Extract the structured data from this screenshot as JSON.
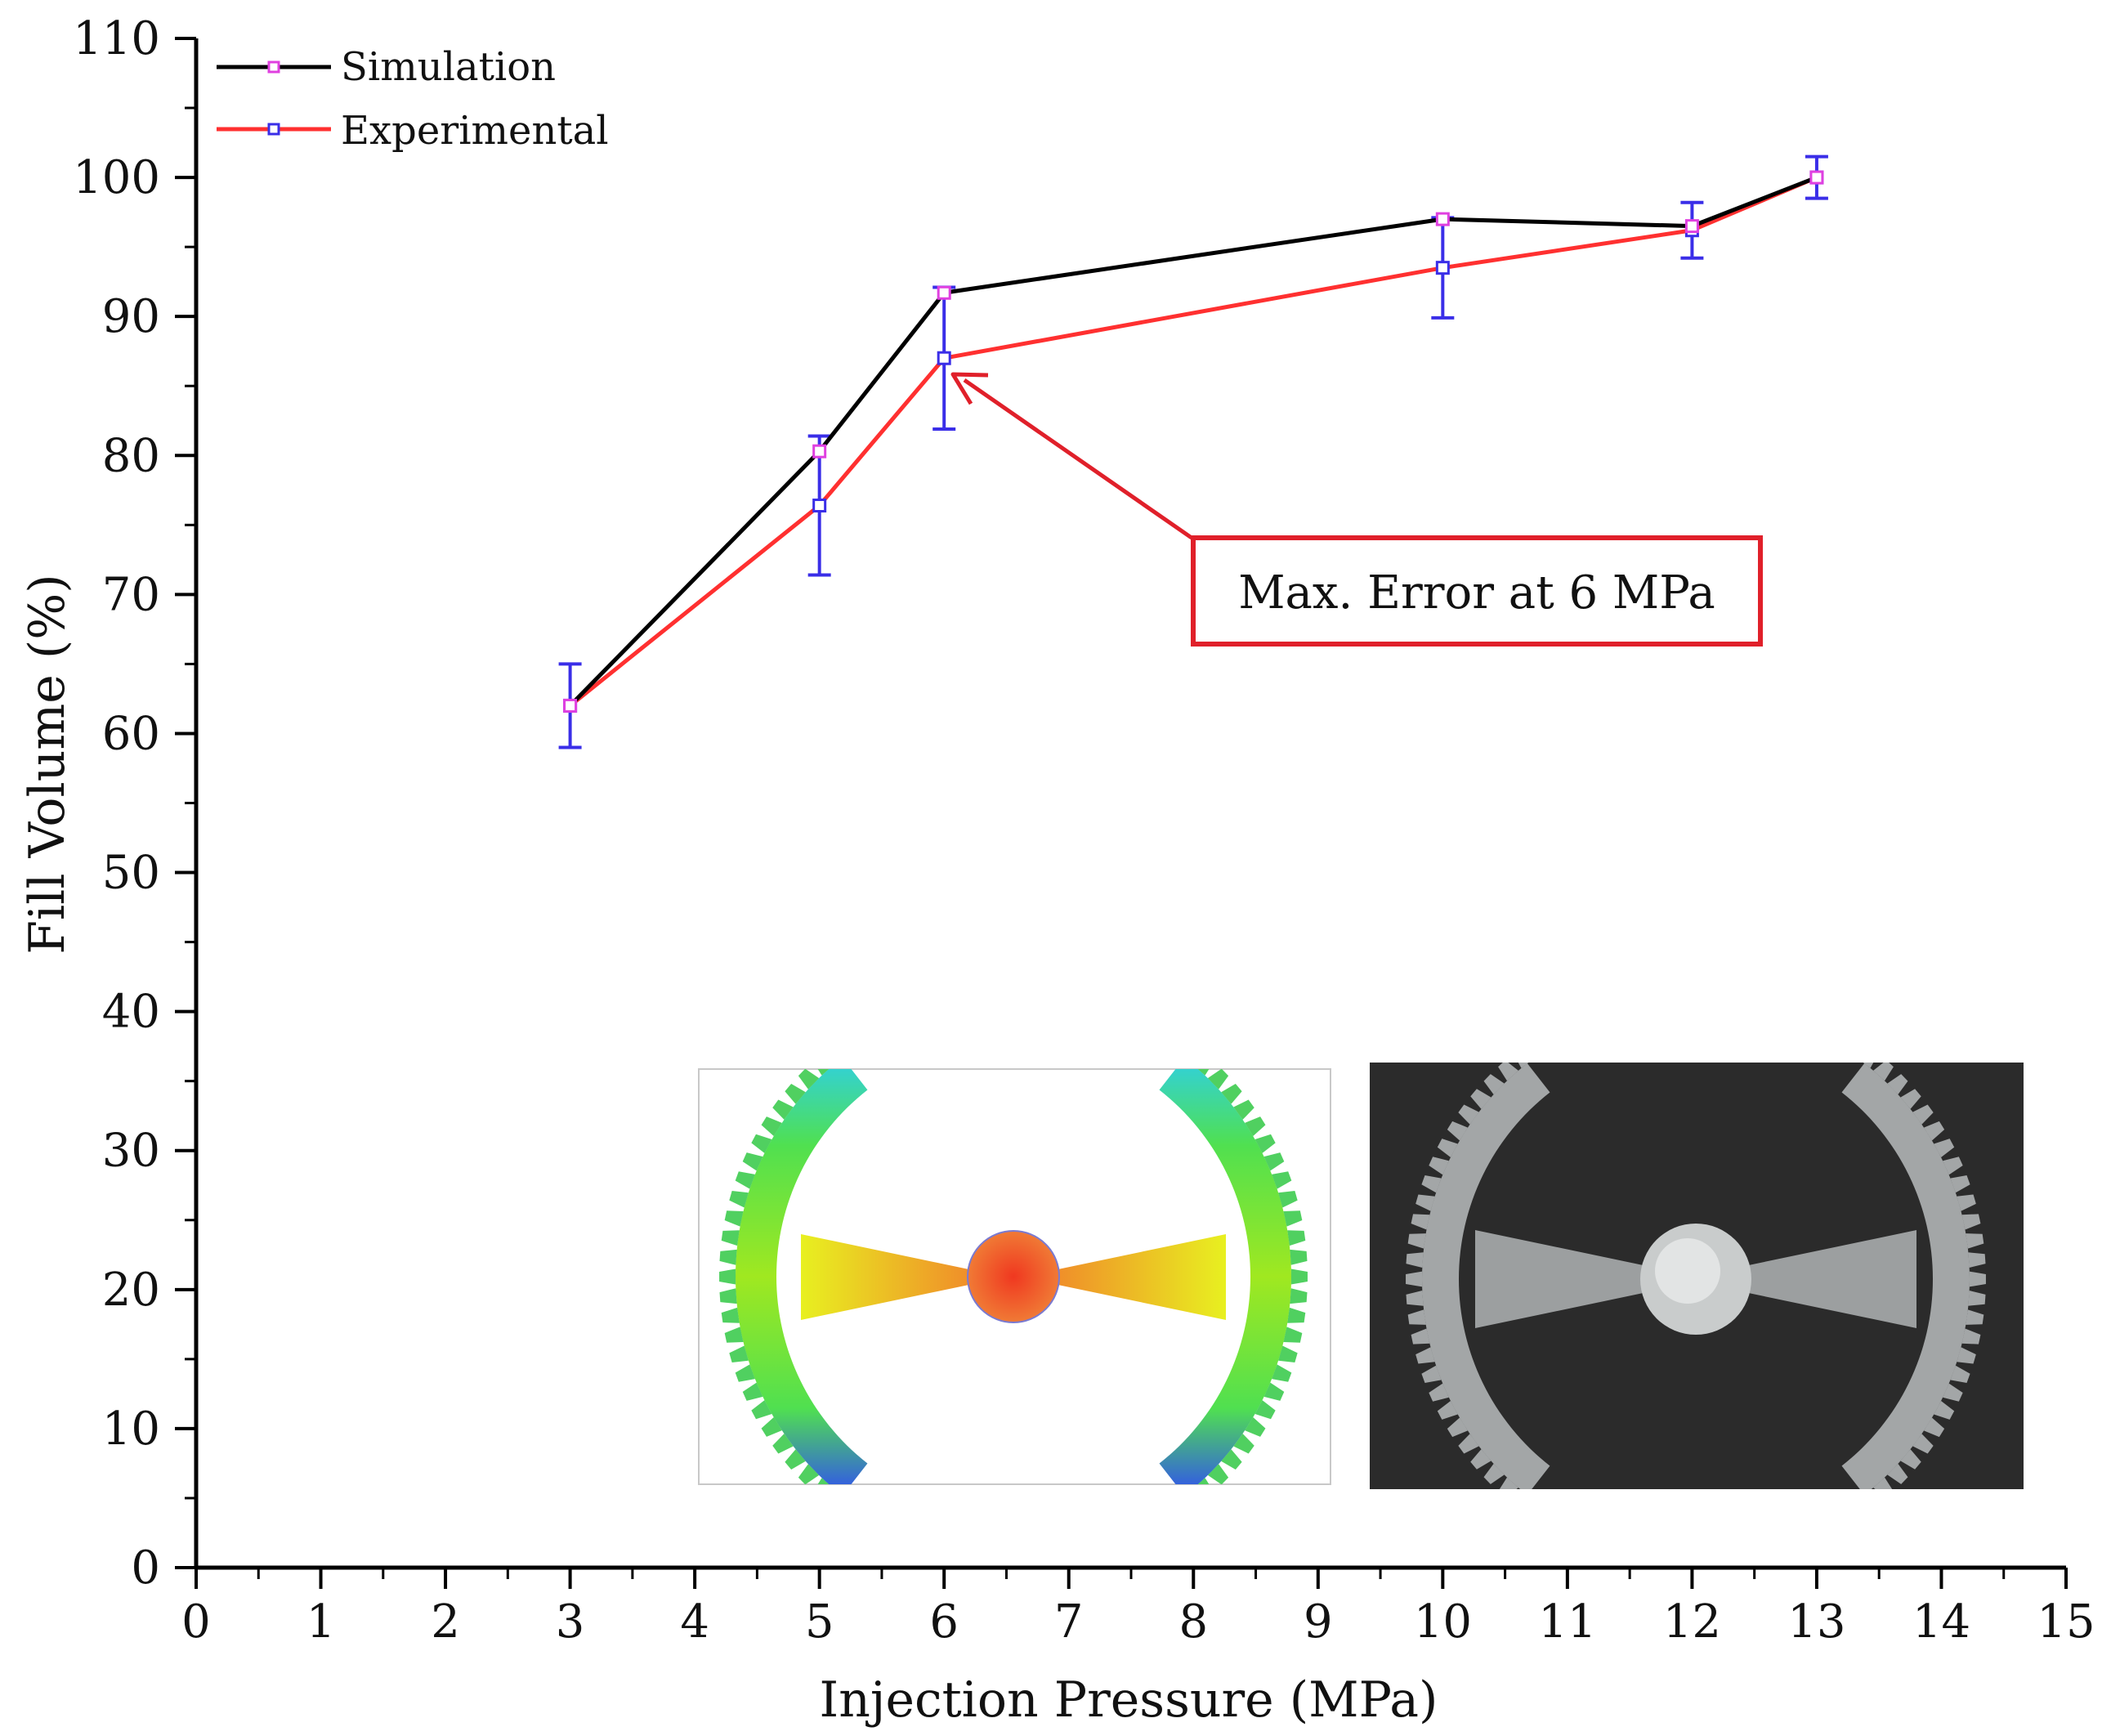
{
  "chart_data": {
    "type": "line",
    "title": "",
    "xlabel": "Injection Pressure (MPa)",
    "ylabel": "Fill Volume (%)",
    "xlim": [
      0,
      15
    ],
    "ylim": [
      0,
      110
    ],
    "xticks": [
      0,
      1,
      2,
      3,
      4,
      5,
      6,
      7,
      8,
      9,
      10,
      11,
      12,
      13,
      14,
      15
    ],
    "yticks": [
      0,
      10,
      20,
      30,
      40,
      50,
      60,
      70,
      80,
      90,
      100,
      110
    ],
    "grid": false,
    "legend_position": "top-left",
    "series": [
      {
        "name": "Simulation",
        "line_color": "#000000",
        "marker_color": "#e040e0",
        "x": [
          3,
          5,
          6,
          10,
          12,
          13
        ],
        "y": [
          62,
          80.3,
          91.7,
          97,
          96.5,
          100
        ]
      },
      {
        "name": "Experimental",
        "line_color": "#ff3030",
        "marker_color": "#3a2ee8",
        "x": [
          3,
          5,
          6,
          10,
          12,
          13
        ],
        "y": [
          62,
          76.4,
          87,
          93.5,
          96.2,
          100
        ],
        "error": [
          3,
          5,
          5.1,
          3.6,
          2,
          1.5
        ]
      }
    ],
    "annotation": {
      "text": "Max. Error at 6 MPa",
      "target_x": 6,
      "target_y": 87,
      "color": "#e0202a"
    }
  },
  "insets": {
    "simulation_image": "simulated-gear-fill-contour",
    "photo_image": "molded-gear-photo"
  }
}
